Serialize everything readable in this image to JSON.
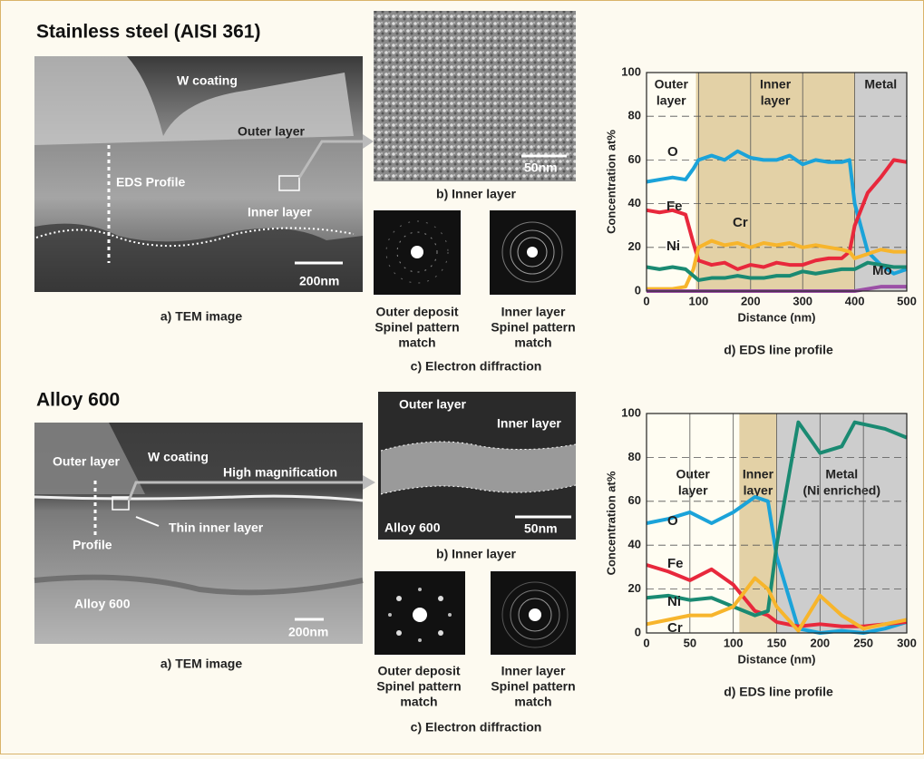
{
  "panels": [
    {
      "title": "Stainless steel (AISI 361)",
      "tem_image": {
        "labels": [
          "W coating",
          "Outer layer",
          "EDS Profile",
          "Inner layer",
          "200nm"
        ],
        "caption": "a) TEM image"
      },
      "inner_layer_image": {
        "labels": [
          "50nm"
        ],
        "caption": "b) Inner layer"
      },
      "diffraction": {
        "left": [
          "Outer deposit",
          "Spinel pattern",
          "match"
        ],
        "right": [
          "Inner layer",
          "Spinel pattern",
          "match"
        ],
        "caption": "c) Electron diffraction"
      }
    },
    {
      "title": "Alloy 600",
      "tem_image": {
        "labels": [
          "Outer layer",
          "W coating",
          "High magnification",
          "Thin inner layer",
          "Profile",
          "Alloy 600",
          "200nm"
        ],
        "caption": "a) TEM image"
      },
      "inner_layer_image": {
        "labels": [
          "Outer layer",
          "Inner layer",
          "Alloy 600",
          "50nm"
        ],
        "caption": "b) Inner layer"
      },
      "diffraction": {
        "left": [
          "Outer deposit",
          "Spinel pattern",
          "match"
        ],
        "right": [
          "Inner layer",
          "Spinel pattern",
          "match"
        ],
        "caption": "c) Electron diffraction"
      }
    }
  ],
  "chart_data": [
    {
      "type": "line",
      "caption": "d) EDS line profile",
      "y_label": "Concentration at%",
      "x_label": "Distance (nm)",
      "xlim": [
        0,
        500
      ],
      "ylim": [
        0,
        100
      ],
      "xticks": [
        0,
        100,
        200,
        300,
        400,
        500
      ],
      "yticks": [
        0,
        20,
        40,
        60,
        80,
        100
      ],
      "grid": true,
      "regions": [
        {
          "label": [
            "Outer",
            "layer"
          ],
          "start": 0,
          "end": 95,
          "color": "#fffdf2"
        },
        {
          "label": [
            "Inner",
            "layer"
          ],
          "start": 95,
          "end": 400,
          "color": "#e3d1a6"
        },
        {
          "label": [
            "Metal"
          ],
          "start": 400,
          "end": 500,
          "color": "#cdcdcd"
        }
      ],
      "series": [
        {
          "name": "O",
          "color": "#1ba3d9",
          "x": [
            0,
            25,
            50,
            75,
            90,
            100,
            125,
            150,
            175,
            200,
            225,
            250,
            275,
            300,
            325,
            350,
            375,
            390,
            400,
            425,
            450,
            475,
            500
          ],
          "values": [
            50,
            51,
            52,
            51,
            56,
            60,
            62,
            60,
            64,
            61,
            60,
            60,
            62,
            58,
            60,
            59,
            59,
            60,
            40,
            18,
            12,
            8,
            10
          ]
        },
        {
          "name": "Fe",
          "color": "#e8283c",
          "x": [
            0,
            25,
            50,
            75,
            90,
            100,
            125,
            150,
            175,
            200,
            225,
            250,
            275,
            300,
            325,
            350,
            375,
            390,
            400,
            425,
            450,
            475,
            500
          ],
          "values": [
            37,
            36,
            37,
            35,
            22,
            14,
            12,
            13,
            10,
            12,
            11,
            13,
            12,
            12,
            14,
            15,
            15,
            18,
            30,
            45,
            52,
            60,
            59
          ]
        },
        {
          "name": "Cr",
          "color": "#f7b52c",
          "x": [
            0,
            25,
            50,
            75,
            90,
            100,
            125,
            150,
            175,
            200,
            225,
            250,
            275,
            300,
            325,
            350,
            375,
            390,
            400,
            425,
            450,
            475,
            500
          ],
          "values": [
            1,
            1,
            1,
            2,
            10,
            20,
            23,
            21,
            22,
            20,
            22,
            21,
            22,
            20,
            21,
            20,
            19,
            18,
            15,
            17,
            19,
            18,
            18
          ]
        },
        {
          "name": "Ni",
          "color": "#1a8a72",
          "x": [
            0,
            25,
            50,
            75,
            90,
            100,
            125,
            150,
            175,
            200,
            225,
            250,
            275,
            300,
            325,
            350,
            375,
            390,
            400,
            425,
            450,
            475,
            500
          ],
          "values": [
            11,
            10,
            11,
            10,
            7,
            5,
            6,
            6,
            7,
            6,
            6,
            7,
            7,
            9,
            8,
            9,
            10,
            10,
            10,
            13,
            12,
            11,
            11
          ]
        },
        {
          "name": "Mo",
          "color": "#9b4fa6",
          "x": [
            0,
            100,
            200,
            300,
            400,
            425,
            450,
            475,
            500
          ],
          "values": [
            0,
            0,
            0,
            0,
            0,
            1,
            2,
            2,
            2
          ]
        }
      ]
    },
    {
      "type": "line",
      "caption": "d) EDS line profile",
      "y_label": "Concentration at%",
      "x_label": "Distance (nm)",
      "xlim": [
        0,
        300
      ],
      "ylim": [
        0,
        100
      ],
      "xticks": [
        0,
        50,
        100,
        150,
        200,
        250,
        300
      ],
      "yticks": [
        0,
        20,
        40,
        60,
        80,
        100
      ],
      "grid": true,
      "regions": [
        {
          "label": [
            "Outer",
            "layer"
          ],
          "start": 0,
          "end": 107,
          "color": "#fffdf2"
        },
        {
          "label": [
            "Inner",
            "layer"
          ],
          "start": 107,
          "end": 150,
          "color": "#e3d1a6"
        },
        {
          "label": [
            "Metal",
            "(Ni enriched)"
          ],
          "start": 150,
          "end": 300,
          "color": "#cdcdcd"
        }
      ],
      "series": [
        {
          "name": "O",
          "color": "#1ba3d9",
          "x": [
            0,
            25,
            50,
            75,
            100,
            125,
            140,
            150,
            175,
            200,
            225,
            250,
            275,
            300
          ],
          "values": [
            50,
            52,
            55,
            50,
            55,
            62,
            60,
            35,
            2,
            0,
            1,
            0,
            2,
            5
          ]
        },
        {
          "name": "Fe",
          "color": "#e8283c",
          "x": [
            0,
            25,
            50,
            75,
            100,
            125,
            140,
            150,
            175,
            200,
            225,
            250,
            275,
            300
          ],
          "values": [
            31,
            28,
            24,
            29,
            22,
            10,
            8,
            5,
            3,
            4,
            3,
            3,
            4,
            5
          ]
        },
        {
          "name": "Ni",
          "color": "#1a8a72",
          "x": [
            0,
            25,
            50,
            75,
            100,
            125,
            140,
            150,
            175,
            200,
            225,
            240,
            275,
            300
          ],
          "values": [
            16,
            17,
            15,
            16,
            12,
            8,
            10,
            40,
            96,
            82,
            85,
            96,
            93,
            89
          ]
        },
        {
          "name": "Cr",
          "color": "#f7b52c",
          "x": [
            0,
            25,
            50,
            75,
            100,
            125,
            140,
            150,
            175,
            200,
            225,
            250,
            275,
            300
          ],
          "values": [
            4,
            6,
            8,
            8,
            12,
            25,
            20,
            12,
            1,
            17,
            8,
            2,
            4,
            6
          ]
        }
      ]
    }
  ]
}
